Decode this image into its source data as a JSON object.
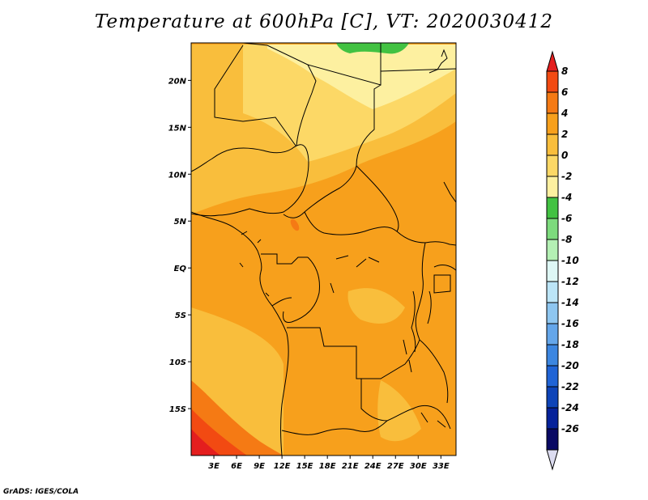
{
  "title": "Temperature at 600hPa [C], VT: 2020030412",
  "credit": "GrADS: IGES/COLA",
  "map": {
    "lon_ticks": [
      "3E",
      "6E",
      "9E",
      "12E",
      "15E",
      "18E",
      "21E",
      "24E",
      "27E",
      "30E",
      "33E"
    ],
    "lat_ticks": [
      "20N",
      "15N",
      "10N",
      "5N",
      "EQ",
      "5S",
      "10S",
      "15S"
    ]
  },
  "colorbar": {
    "labels": [
      "8",
      "6",
      "4",
      "2",
      "0",
      "-2",
      "-4",
      "-6",
      "-8",
      "-10",
      "-12",
      "-14",
      "-16",
      "-18",
      "-20",
      "-22",
      "-24",
      "-26"
    ],
    "colors": [
      "#e41e1e",
      "#f24a12",
      "#f57a14",
      "#f7a01c",
      "#f9be3c",
      "#fcd866",
      "#fdf0a0",
      "#42c242",
      "#7ddb7d",
      "#b4f0b4",
      "#def7f5",
      "#bce5f7",
      "#8ec6f0",
      "#64a6ea",
      "#3c86e0",
      "#2064d6",
      "#0e44b8",
      "#06229a",
      "#0a0a64",
      "#dcdcf0"
    ]
  },
  "chart_data": {
    "type": "heatmap",
    "title": "Temperature at 600hPa [C], VT: 2020030412",
    "variable": "Temperature at 600hPa",
    "units": "C",
    "valid_time": "2020030412",
    "region": {
      "lon_range": [
        0,
        35
      ],
      "lat_range": [
        -20,
        24
      ]
    },
    "colorbar_levels": [
      8,
      6,
      4,
      2,
      0,
      -2,
      -4,
      -6,
      -8,
      -10,
      -12,
      -14,
      -16,
      -18,
      -20,
      -22,
      -24,
      -26
    ],
    "observed_range": [
      -6,
      8
    ]
  }
}
